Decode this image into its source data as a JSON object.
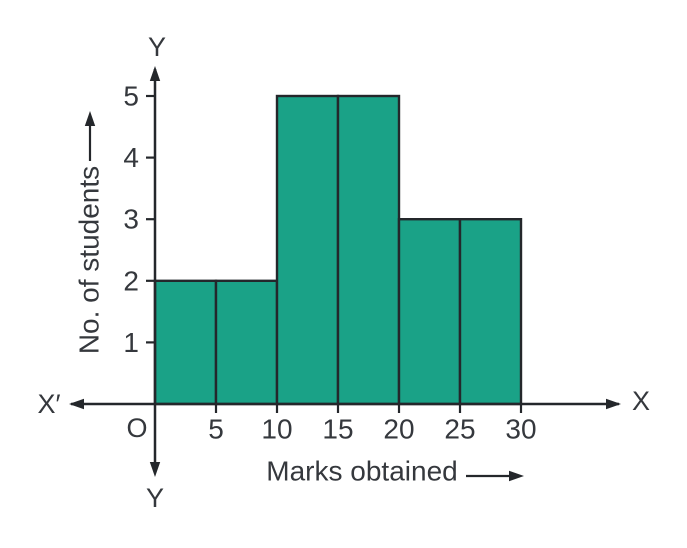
{
  "chart_data": {
    "type": "bar",
    "subtype": "histogram",
    "xlabel": "Marks obtained",
    "ylabel": "No. of students",
    "bin_edges": [
      0,
      5,
      10,
      15,
      20,
      25,
      30
    ],
    "categories": [
      "0-5",
      "5-10",
      "10-15",
      "15-20",
      "20-25",
      "25-30"
    ],
    "values": [
      2,
      2,
      5,
      5,
      3,
      3
    ],
    "x_ticks": [
      5,
      10,
      15,
      20,
      25,
      30
    ],
    "y_ticks": [
      1,
      2,
      3,
      4,
      5
    ],
    "xlim": [
      0,
      30
    ],
    "ylim": [
      0,
      5
    ],
    "grid": false,
    "legend": false,
    "origin_label": "O",
    "axis_end_labels": {
      "top": "Y",
      "bottom": "Y",
      "left": "X′",
      "right": "X"
    },
    "colors": {
      "bar_fill": "#1aa287",
      "line": "#24272b",
      "text": "#35383d"
    }
  }
}
